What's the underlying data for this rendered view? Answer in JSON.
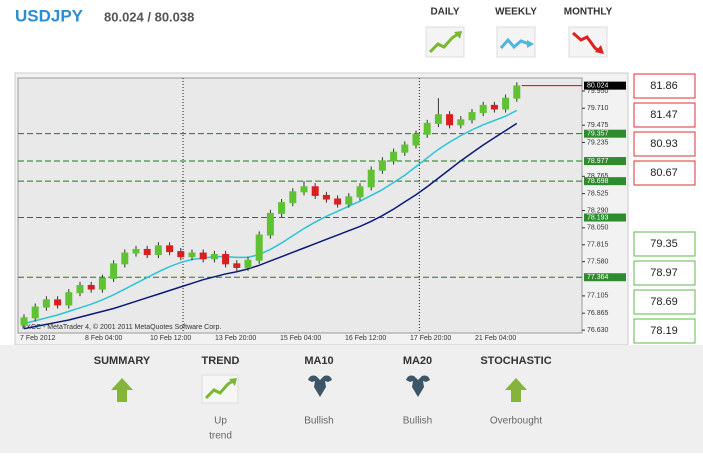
{
  "header": {
    "symbol": "USDJPY",
    "quote": "80.024 / 80.038",
    "periods": [
      "DAILY",
      "WEEKLY",
      "MONTHLY"
    ]
  },
  "price_chart": {
    "type": "candlestick",
    "ylim": [
      76.59,
      80.13
    ],
    "yticks": [
      {
        "value": 79.95,
        "label": "79.950"
      },
      {
        "value": 79.71,
        "label": "79.710"
      },
      {
        "value": 79.475,
        "label": "79.475"
      },
      {
        "value": 79.235,
        "label": "79.235"
      },
      {
        "value": 78.765,
        "label": "78.765"
      },
      {
        "value": 78.525,
        "label": "78.525"
      },
      {
        "value": 78.29,
        "label": "78.290"
      },
      {
        "value": 78.05,
        "label": "78.050"
      },
      {
        "value": 77.815,
        "label": "77.815"
      },
      {
        "value": 77.58,
        "label": "77.580"
      },
      {
        "value": 77.105,
        "label": "77.105"
      },
      {
        "value": 76.865,
        "label": "76.865"
      },
      {
        "value": 76.63,
        "label": "76.630"
      }
    ],
    "price_marker": {
      "value": 80.024,
      "label": "80.024"
    },
    "level_markers": [
      {
        "value": 79.357,
        "label": "79.357"
      },
      {
        "value": 78.977,
        "label": "78.977"
      },
      {
        "value": 78.698,
        "label": "78.698"
      },
      {
        "value": 78.193,
        "label": "78.193"
      },
      {
        "value": 77.364,
        "label": "77.364"
      }
    ],
    "x_labels": [
      "7 Feb 2012",
      "8 Feb 04:00",
      "10 Feb 12:00",
      "13 Feb 20:00",
      "15 Feb 04:00",
      "16 Feb 12:00",
      "17 Feb 20:00",
      "21 Feb 04:00"
    ],
    "footer": "FXCC - MetaTrader 4, © 2001 2011 MetaQuotes Software Corp.",
    "open": [
      76.7,
      76.8,
      76.95,
      77.05,
      76.98,
      77.15,
      77.25,
      77.2,
      77.35,
      77.55,
      77.7,
      77.75,
      77.68,
      77.8,
      77.72,
      77.65,
      77.7,
      77.62,
      77.68,
      77.55,
      77.5,
      77.6,
      77.95,
      78.25,
      78.4,
      78.55,
      78.62,
      78.5,
      78.45,
      78.38,
      78.48,
      78.62,
      78.85,
      78.98,
      79.1,
      79.2,
      79.35,
      79.5,
      79.62,
      79.48,
      79.55,
      79.65,
      79.75,
      79.7,
      79.85
    ],
    "high": [
      76.85,
      77.0,
      77.1,
      77.1,
      77.2,
      77.3,
      77.3,
      77.4,
      77.6,
      77.75,
      77.8,
      77.8,
      77.85,
      77.85,
      77.77,
      77.75,
      77.75,
      77.73,
      77.73,
      77.6,
      77.65,
      78.0,
      78.3,
      78.45,
      78.6,
      78.7,
      78.67,
      78.55,
      78.5,
      78.53,
      78.67,
      78.9,
      79.03,
      79.15,
      79.25,
      79.4,
      79.55,
      79.85,
      79.67,
      79.6,
      79.7,
      79.8,
      79.8,
      79.9,
      80.07
    ],
    "low": [
      76.65,
      76.75,
      76.9,
      76.93,
      76.93,
      77.1,
      77.15,
      77.15,
      77.3,
      77.5,
      77.65,
      77.63,
      77.63,
      77.67,
      77.6,
      77.6,
      77.57,
      77.57,
      77.5,
      77.45,
      77.45,
      77.55,
      77.9,
      78.2,
      78.35,
      78.5,
      78.45,
      78.4,
      78.33,
      78.33,
      78.43,
      78.57,
      78.8,
      78.93,
      79.05,
      79.15,
      79.3,
      79.45,
      79.43,
      79.43,
      79.5,
      79.6,
      79.65,
      79.65,
      79.8
    ],
    "close": [
      76.8,
      76.95,
      77.05,
      76.98,
      77.15,
      77.25,
      77.2,
      77.35,
      77.55,
      77.7,
      77.75,
      77.68,
      77.8,
      77.72,
      77.65,
      77.7,
      77.62,
      77.68,
      77.55,
      77.5,
      77.6,
      77.95,
      78.25,
      78.4,
      78.55,
      78.62,
      78.5,
      78.45,
      78.38,
      78.48,
      78.62,
      78.85,
      78.98,
      79.1,
      79.2,
      79.35,
      79.5,
      79.62,
      79.48,
      79.55,
      79.65,
      79.75,
      79.7,
      79.85,
      80.02
    ],
    "ma10": [
      76.72,
      76.76,
      76.8,
      76.84,
      76.89,
      76.94,
      76.99,
      77.05,
      77.12,
      77.2,
      77.28,
      77.36,
      77.44,
      77.51,
      77.57,
      77.61,
      77.63,
      77.65,
      77.65,
      77.64,
      77.64,
      77.68,
      77.75,
      77.84,
      77.94,
      78.04,
      78.13,
      78.21,
      78.28,
      78.35,
      78.42,
      78.5,
      78.58,
      78.68,
      78.78,
      78.9,
      79.02,
      79.14,
      79.24,
      79.33,
      79.41,
      79.48,
      79.54,
      79.6,
      79.68
    ],
    "ma20": [
      76.65,
      76.68,
      76.71,
      76.74,
      76.77,
      76.81,
      76.85,
      76.89,
      76.93,
      76.98,
      77.03,
      77.08,
      77.13,
      77.18,
      77.23,
      77.28,
      77.33,
      77.37,
      77.41,
      77.44,
      77.48,
      77.53,
      77.59,
      77.65,
      77.71,
      77.77,
      77.83,
      77.89,
      77.95,
      78.01,
      78.07,
      78.14,
      78.22,
      78.31,
      78.41,
      78.51,
      78.62,
      78.74,
      78.86,
      78.98,
      79.09,
      79.2,
      79.3,
      79.4,
      79.5
    ]
  },
  "resistance": [
    81.86,
    81.47,
    80.93,
    80.67
  ],
  "support": [
    79.35,
    78.97,
    78.69,
    78.19
  ],
  "summary": [
    {
      "title": "SUMMARY"
    },
    {
      "title": "TREND",
      "status": [
        "Up",
        "trend"
      ]
    },
    {
      "title": "MA10",
      "status": [
        "Bullish"
      ]
    },
    {
      "title": "MA20",
      "status": [
        "Bullish"
      ]
    },
    {
      "title": "STOCHASTIC",
      "status": [
        "Overbought"
      ]
    }
  ]
}
